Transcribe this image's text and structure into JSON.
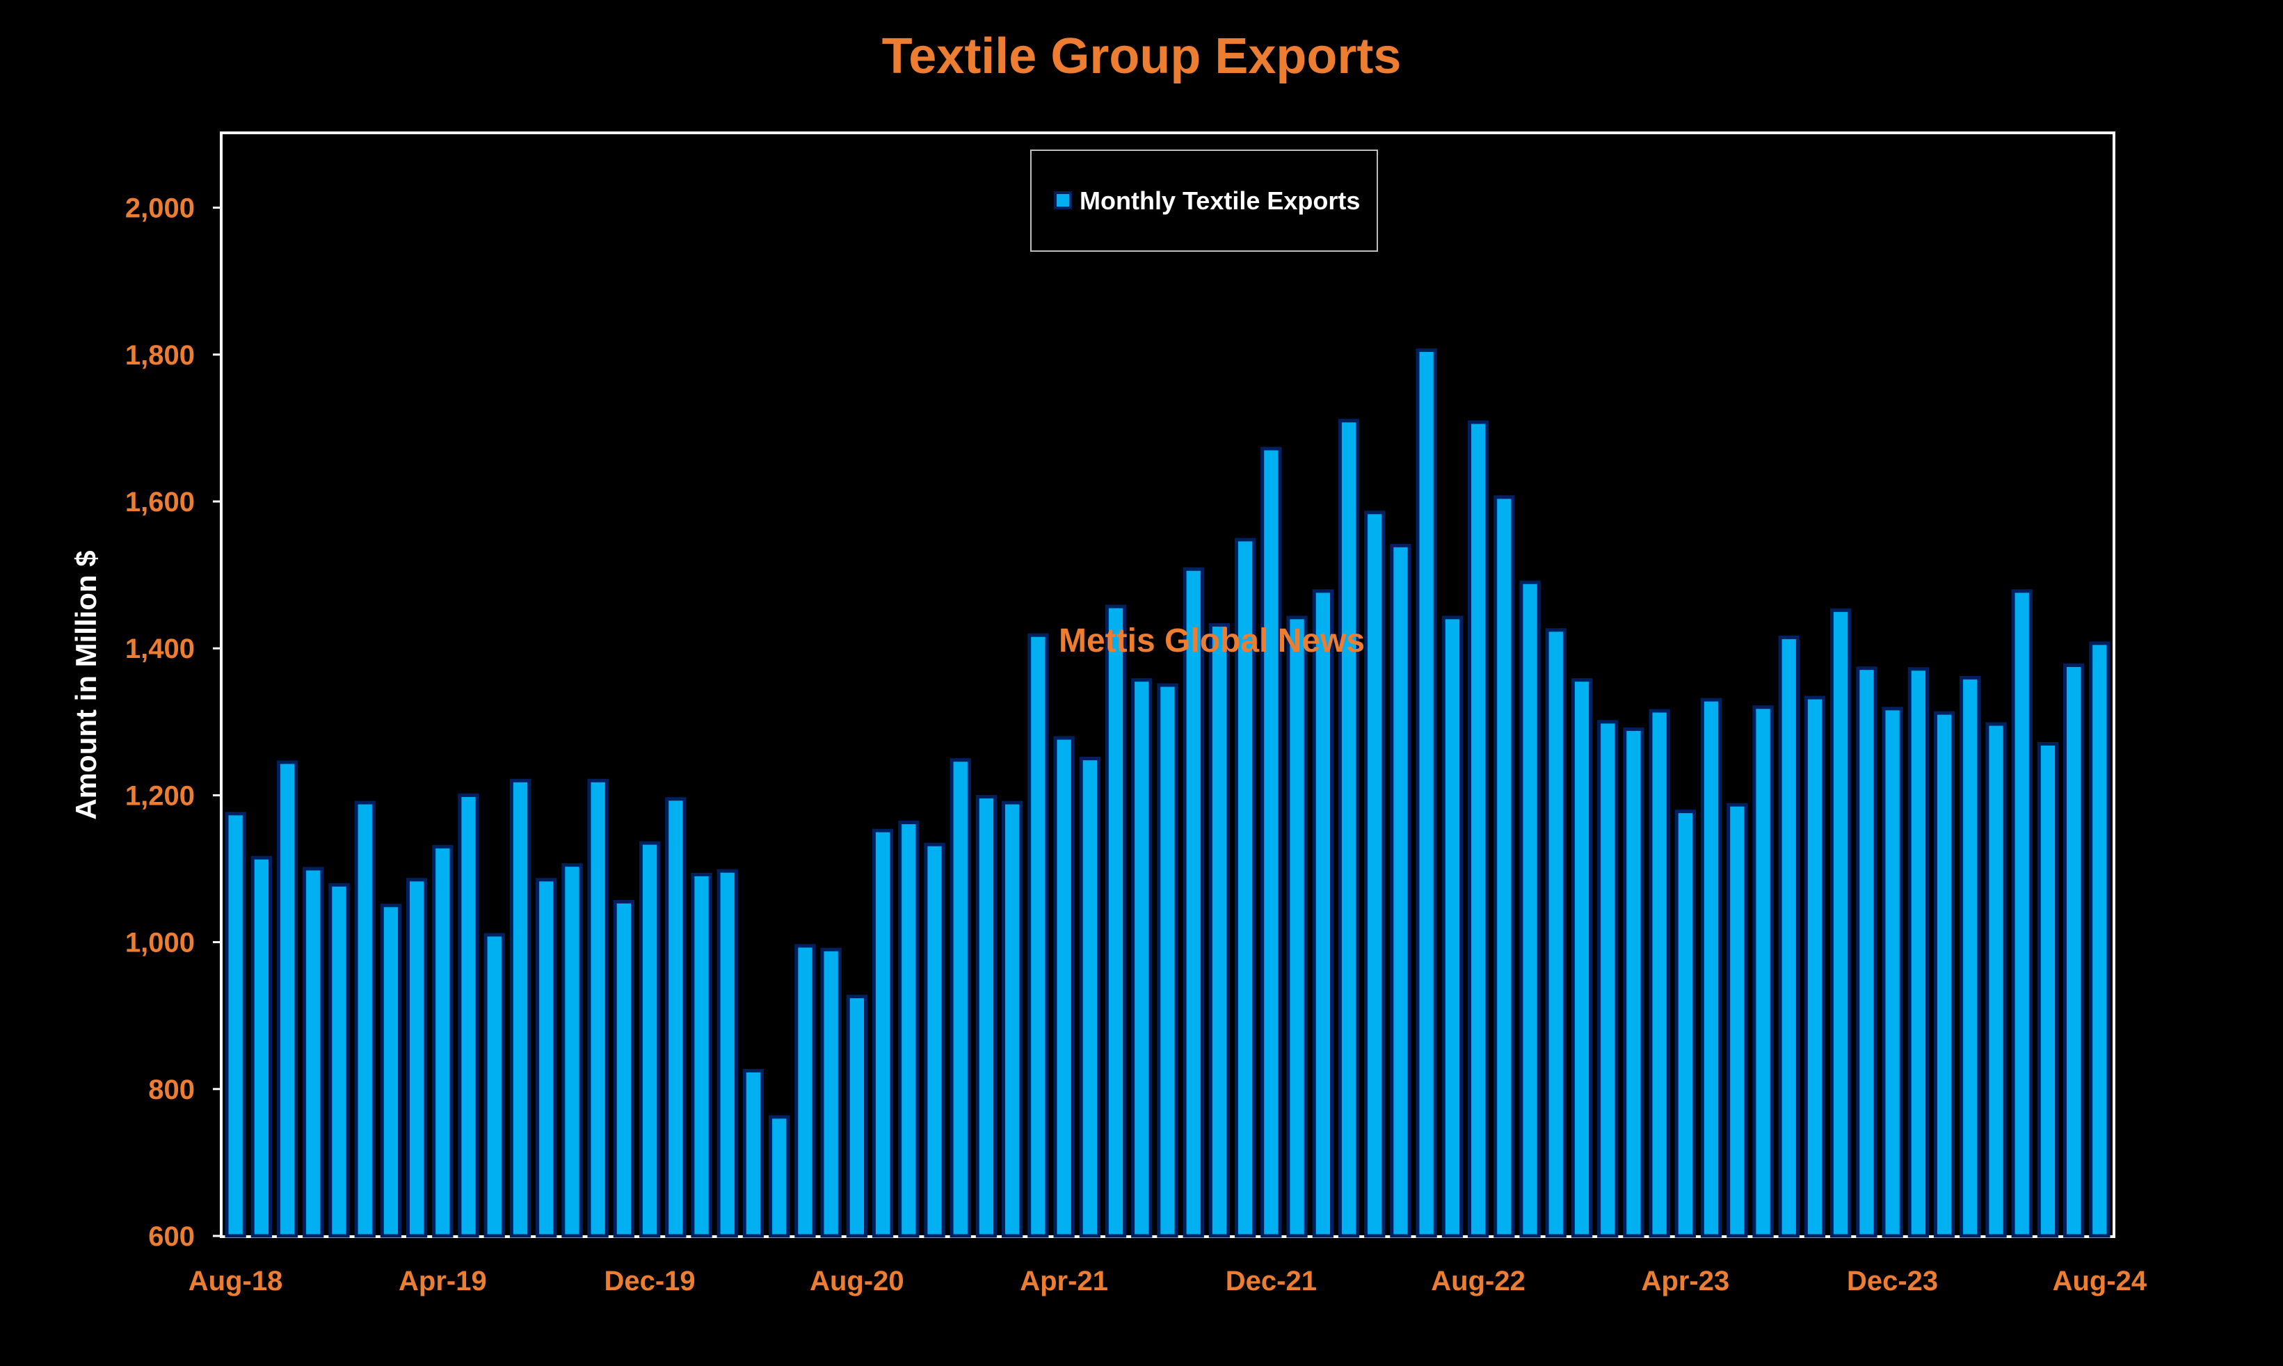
{
  "colors": {
    "background": "#000000",
    "title": "#ED7D31",
    "tick_labels": "#ED7D31",
    "axis_title": "#FFFFFF",
    "bar_fill": "#00B0F0",
    "bar_edge": "#002060",
    "plot_border": "#FFFFFF",
    "legend_border": "#BFBFBF"
  },
  "watermark": "Mettis Global News",
  "chart_data": {
    "type": "bar",
    "title": "Textile Group Exports",
    "xlabel": "",
    "ylabel": "Amount in Million $",
    "ylim": [
      600,
      2100
    ],
    "yticks": [
      600,
      800,
      1000,
      1200,
      1400,
      1600,
      1800,
      2000
    ],
    "ytick_labels": [
      "600",
      "800",
      "1,000",
      "1,200",
      "1,400",
      "1,600",
      "1,800",
      "2,000"
    ],
    "xtick_labels": [
      "Aug-18",
      "Apr-19",
      "Dec-19",
      "Aug-20",
      "Apr-21",
      "Dec-21",
      "Aug-22",
      "Apr-23",
      "Dec-23",
      "Aug-24"
    ],
    "xtick_every": 8,
    "grid": false,
    "legend": "top-center",
    "series": [
      {
        "name": "Monthly Textile Exports",
        "values": [
          1175,
          1115,
          1245,
          1100,
          1078,
          1190,
          1050,
          1085,
          1130,
          1200,
          1010,
          1220,
          1085,
          1105,
          1220,
          1055,
          1135,
          1195,
          1092,
          1097,
          825,
          762,
          995,
          990,
          926,
          1152,
          1163,
          1133,
          1248,
          1198,
          1190,
          1418,
          1278,
          1250,
          1457,
          1357,
          1350,
          1508,
          1432,
          1548,
          1672,
          1442,
          1478,
          1710,
          1585,
          1540,
          1806,
          1442,
          1708,
          1606,
          1490,
          1425,
          1357,
          1300,
          1290,
          1315,
          1178,
          1330,
          1187,
          1320,
          1415,
          1333,
          1452,
          1373,
          1318,
          1372,
          1312,
          1360,
          1297,
          1478,
          1270,
          1377,
          1407
        ]
      }
    ]
  }
}
